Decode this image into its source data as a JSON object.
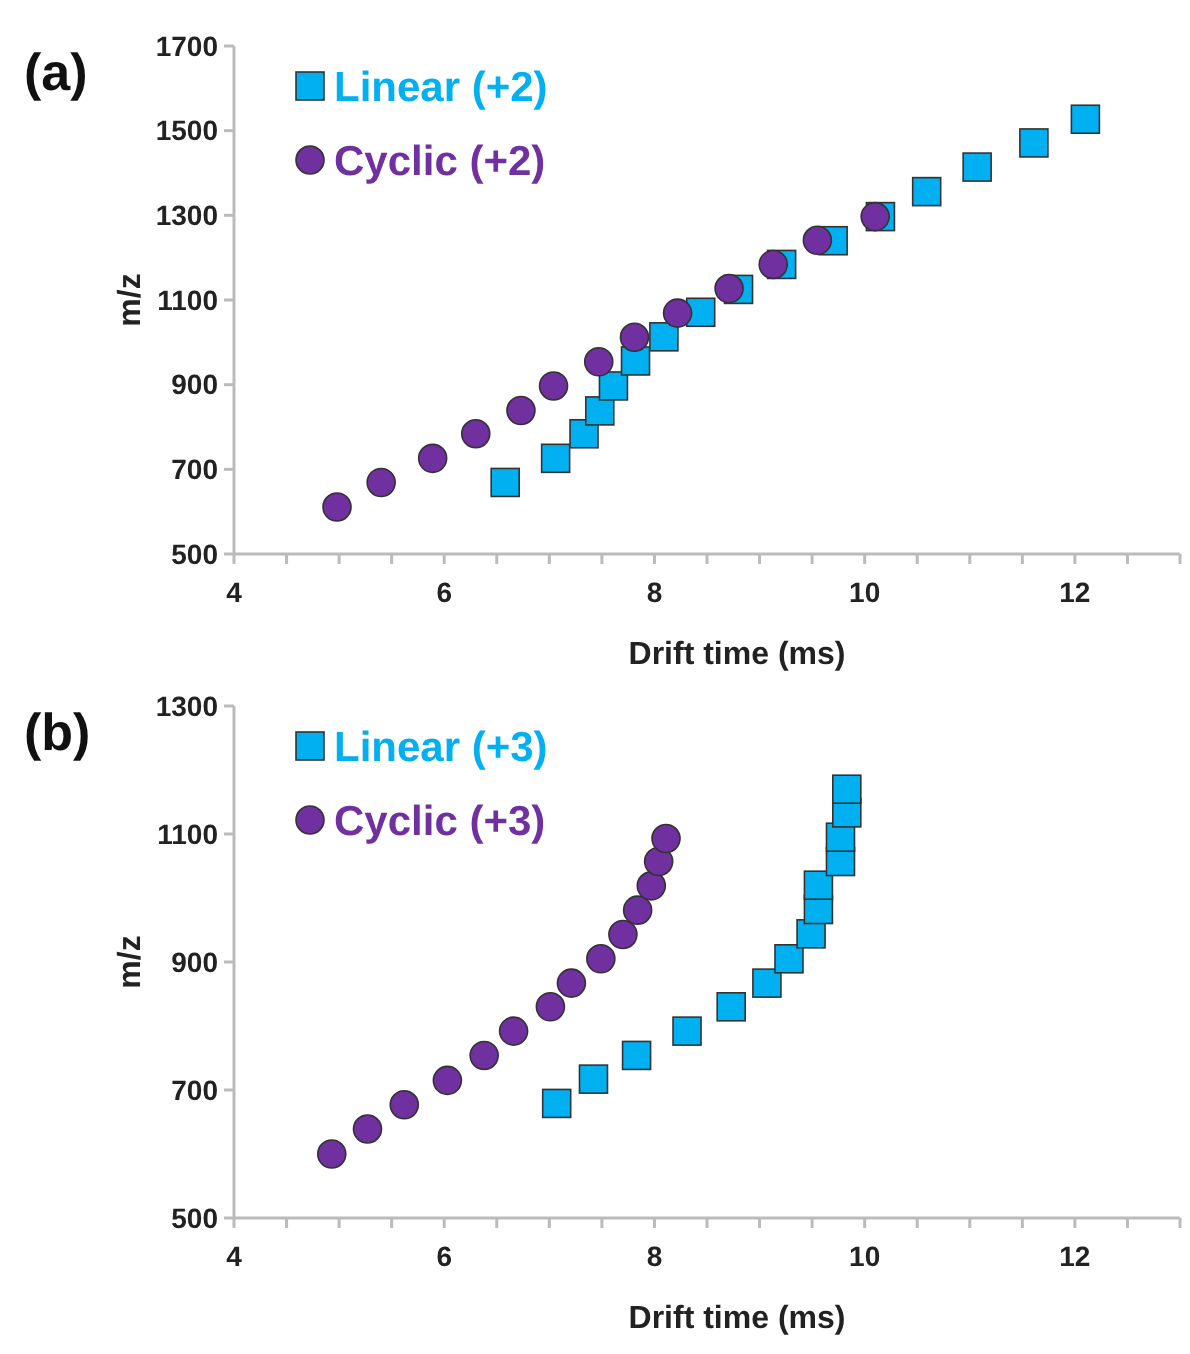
{
  "chart_data": [
    {
      "type": "scatter",
      "title": "(a)",
      "xlabel": "Drift time (ms)",
      "ylabel": "m/z",
      "xlim": [
        4,
        13
      ],
      "xticks": [
        4,
        {
          "value": 4.5,
          "label": null
        },
        6,
        {
          "value": 5,
          "label": null
        },
        {
          "value": 5.5,
          "label": null
        },
        {
          "value": 6.5,
          "label": null
        },
        {
          "value": 7,
          "label": null
        },
        {
          "value": 7.5,
          "label": null
        },
        8,
        {
          "value": 8.5,
          "label": null
        },
        {
          "value": 9,
          "label": null
        },
        {
          "value": 9.5,
          "label": null
        },
        10,
        {
          "value": 10.5,
          "label": null
        },
        {
          "value": 11,
          "label": null
        },
        {
          "value": 11.5,
          "label": null
        },
        12,
        {
          "value": 12.5,
          "label": null
        },
        {
          "value": 13,
          "label": null
        }
      ],
      "ylim": [
        500,
        1700
      ],
      "yticks": [
        500,
        700,
        900,
        1100,
        1300,
        1500,
        1700
      ],
      "legend": "top left",
      "grid": false,
      "series": [
        {
          "name": "Linear (+2)",
          "color": "#00b0f0",
          "marker": "square",
          "x": [
            6.58,
            7.06,
            7.33,
            7.48,
            7.61,
            7.82,
            8.09,
            8.44,
            8.8,
            9.21,
            9.7,
            10.15,
            10.59,
            11.07,
            11.61,
            12.1
          ],
          "values": [
            669,
            726,
            784,
            838,
            897,
            956,
            1013,
            1071,
            1125,
            1184,
            1240,
            1297,
            1356,
            1414,
            1471,
            1527
          ]
        },
        {
          "name": "Cyclic (+2)",
          "color": "#7030a0",
          "marker": "circle",
          "x": [
            4.98,
            5.4,
            5.89,
            6.3,
            6.73,
            7.04,
            7.47,
            7.81,
            8.22,
            8.71,
            9.13,
            9.55,
            10.1
          ],
          "values": [
            611,
            669,
            726,
            784,
            839,
            897,
            954,
            1012,
            1069,
            1127,
            1184,
            1241,
            1297
          ]
        }
      ]
    },
    {
      "type": "scatter",
      "title": "(b)",
      "xlabel": "Drift time (ms)",
      "ylabel": "m/z",
      "xlim": [
        4,
        13
      ],
      "xticks": [
        4,
        {
          "value": 4.5,
          "label": null
        },
        6,
        {
          "value": 5,
          "label": null
        },
        {
          "value": 5.5,
          "label": null
        },
        {
          "value": 6.5,
          "label": null
        },
        {
          "value": 7,
          "label": null
        },
        {
          "value": 7.5,
          "label": null
        },
        8,
        {
          "value": 8.5,
          "label": null
        },
        {
          "value": 9,
          "label": null
        },
        {
          "value": 9.5,
          "label": null
        },
        10,
        {
          "value": 10.5,
          "label": null
        },
        {
          "value": 11,
          "label": null
        },
        {
          "value": 11.5,
          "label": null
        },
        12,
        {
          "value": 12.5,
          "label": null
        },
        {
          "value": 13,
          "label": null
        }
      ],
      "ylim": [
        500,
        1300
      ],
      "yticks": [
        500,
        700,
        900,
        1100,
        1300
      ],
      "legend": "top left",
      "grid": false,
      "series": [
        {
          "name": "Linear (+3)",
          "color": "#00b0f0",
          "marker": "square",
          "x": [
            7.07,
            7.42,
            7.83,
            8.31,
            8.73,
            9.07,
            9.28,
            9.49,
            9.56,
            9.56,
            9.77,
            9.77,
            9.83,
            9.83
          ],
          "values": [
            679,
            717,
            754,
            792,
            830,
            867,
            905,
            944,
            982,
            1020,
            1057,
            1095,
            1133,
            1170
          ]
        },
        {
          "name": "Cyclic (+3)",
          "color": "#7030a0",
          "marker": "circle",
          "x": [
            4.93,
            5.27,
            5.62,
            6.03,
            6.38,
            6.66,
            7.01,
            7.21,
            7.49,
            7.7,
            7.84,
            7.97,
            8.04,
            8.11
          ],
          "values": [
            600,
            639,
            677,
            715,
            754,
            792,
            830,
            867,
            905,
            943,
            981,
            1019,
            1057,
            1093
          ]
        }
      ]
    }
  ]
}
